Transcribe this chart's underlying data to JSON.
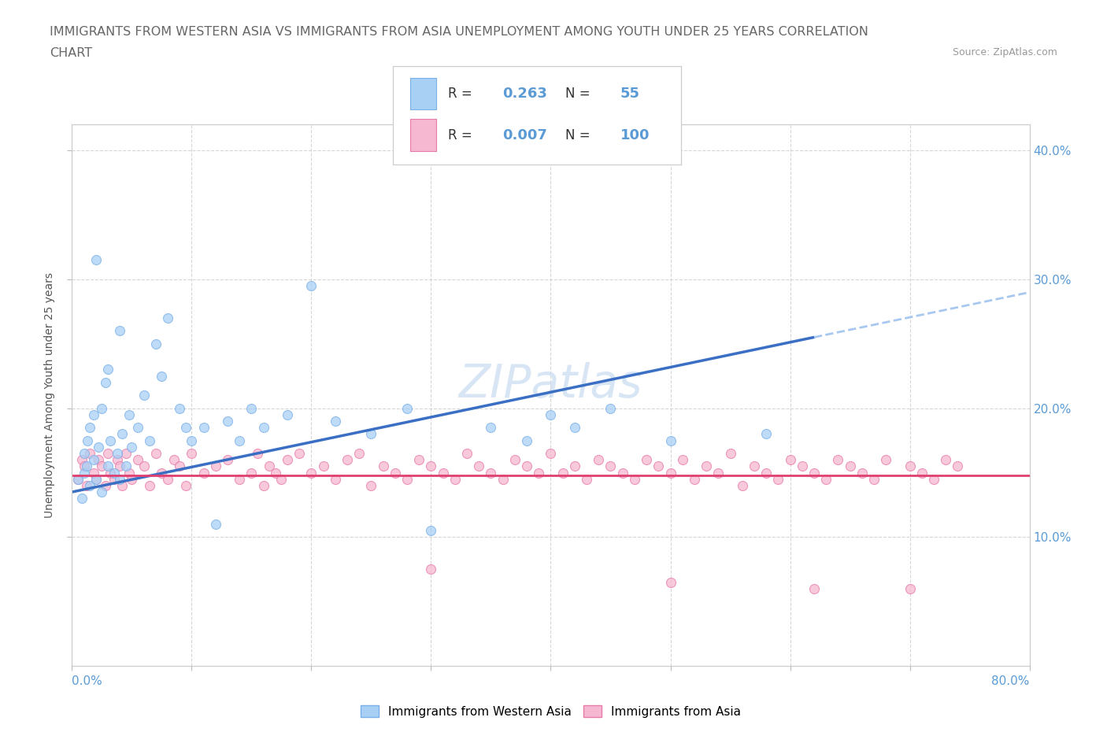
{
  "title_line1": "IMMIGRANTS FROM WESTERN ASIA VS IMMIGRANTS FROM ASIA UNEMPLOYMENT AMONG YOUTH UNDER 25 YEARS CORRELATION",
  "title_line2": "CHART",
  "source_text": "Source: ZipAtlas.com",
  "ylabel": "Unemployment Among Youth under 25 years",
  "xmin": 0.0,
  "xmax": 0.8,
  "ymin": 0.0,
  "ymax": 0.42,
  "series1_color": "#a8d0f5",
  "series2_color": "#f5b8d0",
  "series1_edge": "#7ab0e8",
  "series2_edge": "#e87aaa",
  "line1_color": "#3a6fc4",
  "line2_color": "#e04070",
  "line1_dash_color": "#a8c8f0",
  "watermark_color": "#c8daf0",
  "title_color": "#666666",
  "source_color": "#999999",
  "tick_color": "#5b9bd5",
  "ylabel_color": "#555555",
  "legend_r1": "0.263",
  "legend_n1": "55",
  "legend_r2": "0.007",
  "legend_n2": "100"
}
